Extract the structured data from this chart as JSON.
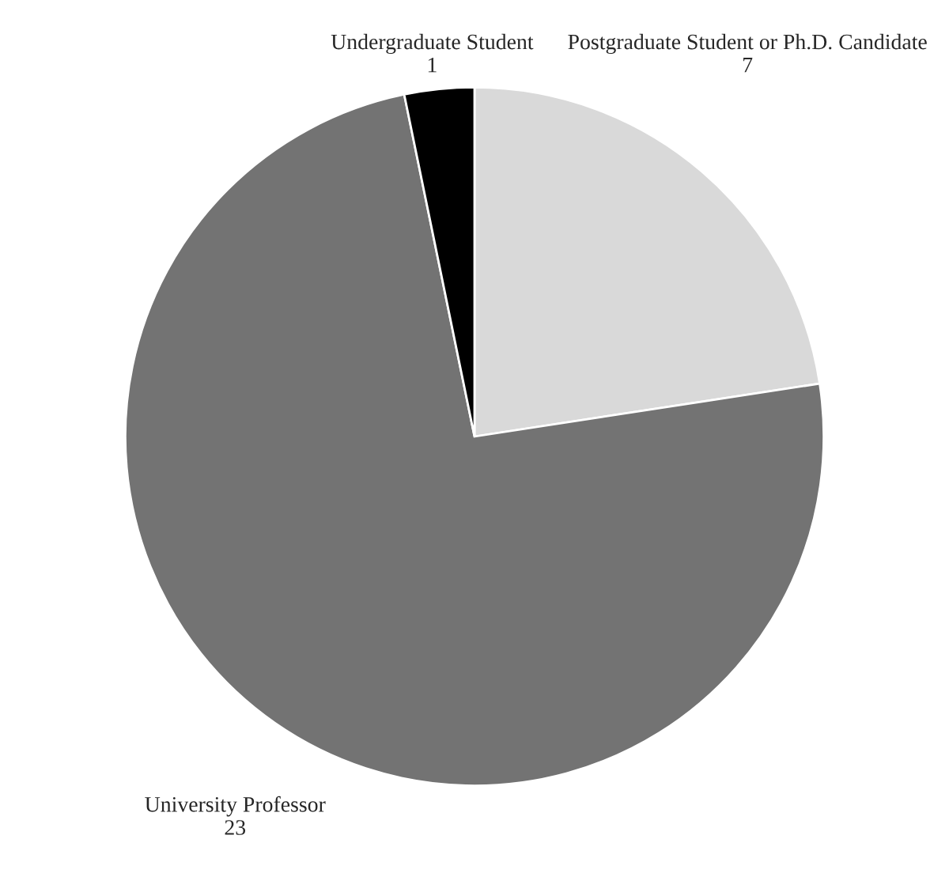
{
  "chart_data": {
    "type": "pie",
    "categories": [
      "Postgraduate Student or Ph.D. Candidate",
      "University Professor",
      "Undergraduate Student"
    ],
    "values": [
      7,
      23,
      1
    ],
    "colors": [
      "#d9d9d9",
      "#737373",
      "#000000"
    ],
    "data_labels": true
  }
}
